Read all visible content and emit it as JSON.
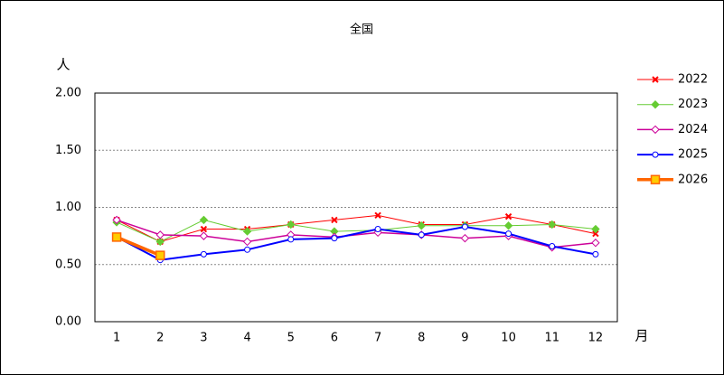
{
  "chart_data": {
    "type": "line",
    "title": "全国",
    "y_label": "人",
    "x_label": "月",
    "categories": [
      "1",
      "2",
      "3",
      "4",
      "5",
      "6",
      "7",
      "8",
      "9",
      "10",
      "11",
      "12"
    ],
    "ylim": [
      0,
      2
    ],
    "yticks": [
      {
        "value": 0,
        "label": "0.00"
      },
      {
        "value": 0.5,
        "label": "0.50"
      },
      {
        "value": 1,
        "label": "1.00"
      },
      {
        "value": 1.5,
        "label": "1.50"
      },
      {
        "value": 2,
        "label": "2.00"
      }
    ],
    "grid": true,
    "legend": "right",
    "series": [
      {
        "name": "2022",
        "color": "#ff0000",
        "marker": "x",
        "width": 1,
        "values": [
          0.89,
          0.7,
          0.81,
          0.81,
          0.85,
          0.89,
          0.93,
          0.85,
          0.85,
          0.92,
          0.85,
          0.77
        ]
      },
      {
        "name": "2023",
        "color": "#66cc33",
        "marker": "diamond-filled",
        "width": 1,
        "values": [
          0.87,
          0.7,
          0.89,
          0.79,
          0.85,
          0.79,
          0.8,
          0.84,
          0.84,
          0.84,
          0.85,
          0.81
        ]
      },
      {
        "name": "2024",
        "color": "#cc0099",
        "marker": "diamond",
        "width": 1.5,
        "values": [
          0.89,
          0.76,
          0.75,
          0.7,
          0.76,
          0.74,
          0.78,
          0.76,
          0.73,
          0.75,
          0.65,
          0.69
        ]
      },
      {
        "name": "2025",
        "color": "#0000ff",
        "marker": "circle",
        "width": 2,
        "values": [
          0.74,
          0.54,
          0.59,
          0.63,
          0.72,
          0.73,
          0.81,
          0.76,
          0.83,
          0.77,
          0.66,
          0.59
        ]
      },
      {
        "name": "2026",
        "color": "#ff6600",
        "marker": "square",
        "width": 3.5,
        "values": [
          0.74,
          0.58,
          null,
          null,
          null,
          null,
          null,
          null,
          null,
          null,
          null,
          null
        ]
      }
    ]
  }
}
